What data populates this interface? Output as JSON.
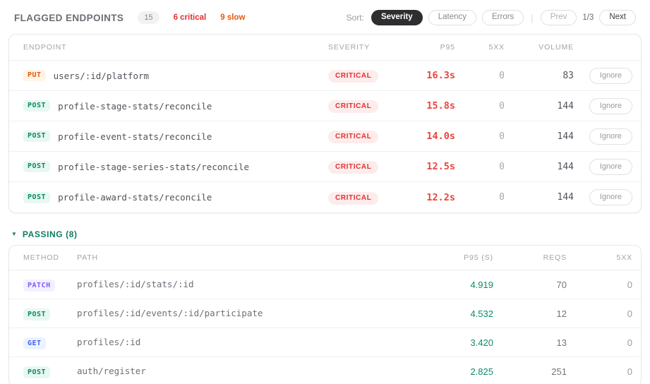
{
  "header": {
    "title": "FLAGGED ENDPOINTS",
    "total_count": "15",
    "critical_label": "6 critical",
    "slow_label": "9 slow",
    "sort_label": "Sort:",
    "sort_options": [
      {
        "label": "Severity",
        "active": true
      },
      {
        "label": "Latency",
        "active": false
      },
      {
        "label": "Errors",
        "active": false
      }
    ],
    "prev_label": "Prev",
    "page_indicator": "1/3",
    "next_label": "Next"
  },
  "flagged_table": {
    "columns": [
      "ENDPOINT",
      "SEVERITY",
      "P95",
      "5XX",
      "VOLUME"
    ],
    "ignore_label": "Ignore",
    "rows": [
      {
        "method": "PUT",
        "path": "users/:id/platform",
        "severity": "CRITICAL",
        "p95": "16.3s",
        "five_xx": "0",
        "volume": "83"
      },
      {
        "method": "POST",
        "path": "profile-stage-stats/reconcile",
        "severity": "CRITICAL",
        "p95": "15.8s",
        "five_xx": "0",
        "volume": "144"
      },
      {
        "method": "POST",
        "path": "profile-event-stats/reconcile",
        "severity": "CRITICAL",
        "p95": "14.0s",
        "five_xx": "0",
        "volume": "144"
      },
      {
        "method": "POST",
        "path": "profile-stage-series-stats/reconcile",
        "severity": "CRITICAL",
        "p95": "12.5s",
        "five_xx": "0",
        "volume": "144"
      },
      {
        "method": "POST",
        "path": "profile-award-stats/reconcile",
        "severity": "CRITICAL",
        "p95": "12.2s",
        "five_xx": "0",
        "volume": "144"
      }
    ]
  },
  "passing_section": {
    "toggle_icon": "▼",
    "title": "PASSING (8)",
    "columns": [
      "METHOD",
      "PATH",
      "P95 (S)",
      "REQS",
      "5XX"
    ],
    "rows": [
      {
        "method": "PATCH",
        "path": "profiles/:id/stats/:id",
        "p95": "4.919",
        "reqs": "70",
        "five_xx": "0"
      },
      {
        "method": "POST",
        "path": "profiles/:id/events/:id/participate",
        "p95": "4.532",
        "reqs": "12",
        "five_xx": "0"
      },
      {
        "method": "GET",
        "path": "profiles/:id",
        "p95": "3.420",
        "reqs": "13",
        "five_xx": "0"
      },
      {
        "method": "POST",
        "path": "auth/register",
        "p95": "2.825",
        "reqs": "251",
        "five_xx": "0"
      }
    ]
  },
  "colors": {
    "critical_text": "#e03131",
    "critical_bg": "#fdecec",
    "p95_critical": "#e8453c",
    "slow_accent": "#e8590c",
    "passing_accent": "#117a65",
    "p95_passing": "#0d8a6a",
    "active_pill_bg": "#2e2e31",
    "method_colors": {
      "PUT": {
        "fg": "#e8590c",
        "bg": "#fff4e6"
      },
      "POST": {
        "fg": "#0b8a63",
        "bg": "#e7f8f1"
      },
      "PATCH": {
        "fg": "#7c5cfa",
        "bg": "#f3f0ff"
      },
      "GET": {
        "fg": "#4263eb",
        "bg": "#edf2ff"
      }
    }
  }
}
